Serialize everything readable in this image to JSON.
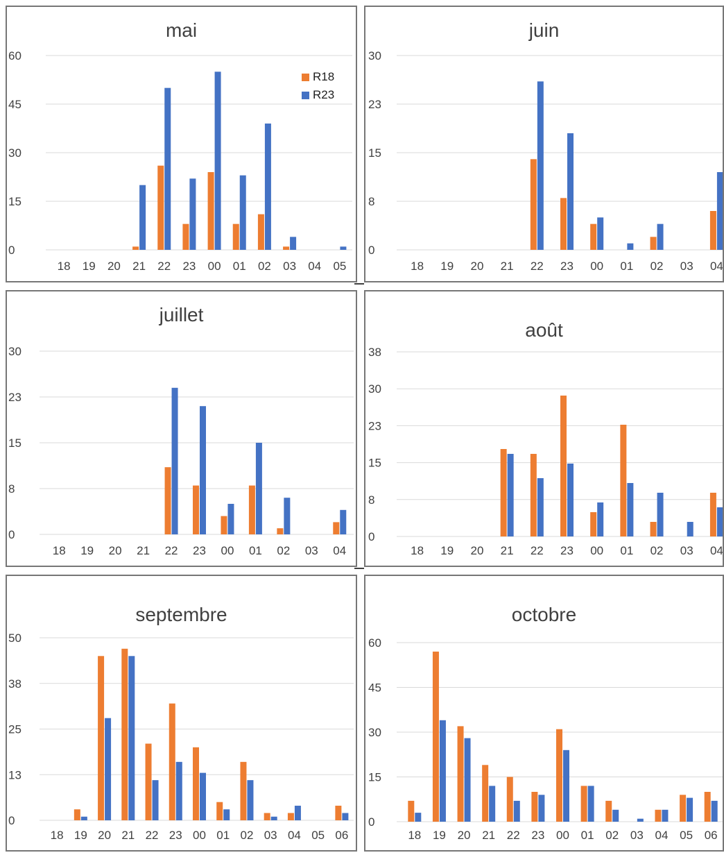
{
  "colors": {
    "R18": "#ED7D31",
    "R23": "#4472C4",
    "grid": "#d9d9d9",
    "text": "#404040"
  },
  "legend": {
    "series": [
      {
        "name": "R18",
        "color": "#ED7D31"
      },
      {
        "name": "R23",
        "color": "#4472C4"
      }
    ]
  },
  "chart_data": [
    {
      "type": "bar",
      "title": "mai",
      "categories": [
        "18",
        "19",
        "20",
        "21",
        "22",
        "23",
        "00",
        "01",
        "02",
        "03",
        "04",
        "05"
      ],
      "yticks": [
        "0",
        "15",
        "30",
        "45",
        "60"
      ],
      "ylim": [
        0,
        60
      ],
      "series": [
        {
          "name": "R18",
          "values": [
            0,
            0,
            0,
            1,
            26,
            8,
            24,
            8,
            11,
            1,
            0,
            0
          ]
        },
        {
          "name": "R23",
          "values": [
            0,
            0,
            0,
            20,
            50,
            22,
            55,
            23,
            39,
            4,
            0,
            1
          ]
        }
      ],
      "legend": "top-right"
    },
    {
      "type": "bar",
      "title": "juin",
      "categories": [
        "18",
        "19",
        "20",
        "21",
        "22",
        "23",
        "00",
        "01",
        "02",
        "03",
        "04"
      ],
      "yticks": [
        "0",
        "8",
        "15",
        "23",
        "30"
      ],
      "ylim": [
        0,
        30
      ],
      "series": [
        {
          "name": "R18",
          "values": [
            0,
            0,
            0,
            0,
            14,
            8,
            4,
            0,
            2,
            0,
            6
          ]
        },
        {
          "name": "R23",
          "values": [
            0,
            0,
            0,
            0,
            26,
            18,
            5,
            1,
            4,
            0,
            12
          ]
        }
      ]
    },
    {
      "type": "bar",
      "title": "juillet",
      "categories": [
        "18",
        "19",
        "20",
        "21",
        "22",
        "23",
        "00",
        "01",
        "02",
        "03",
        "04"
      ],
      "yticks": [
        "0",
        "8",
        "15",
        "23",
        "30"
      ],
      "ylim": [
        0,
        30
      ],
      "series": [
        {
          "name": "R18",
          "values": [
            0,
            0,
            0,
            0,
            11,
            8,
            3,
            8,
            1,
            0,
            2
          ]
        },
        {
          "name": "R23",
          "values": [
            0,
            0,
            0,
            0,
            24,
            21,
            5,
            15,
            6,
            0,
            4
          ]
        }
      ]
    },
    {
      "type": "bar",
      "title": "août",
      "categories": [
        "18",
        "19",
        "20",
        "21",
        "22",
        "23",
        "00",
        "01",
        "02",
        "03",
        "04"
      ],
      "yticks": [
        "0",
        "8",
        "15",
        "23",
        "30",
        "38"
      ],
      "ylim": [
        0,
        38
      ],
      "series": [
        {
          "name": "R18",
          "values": [
            0,
            0,
            0,
            18,
            17,
            29,
            5,
            23,
            3,
            0,
            9
          ]
        },
        {
          "name": "R23",
          "values": [
            0,
            0,
            0,
            17,
            12,
            15,
            7,
            11,
            9,
            3,
            6
          ]
        }
      ]
    },
    {
      "type": "bar",
      "title": "septembre",
      "categories": [
        "18",
        "19",
        "20",
        "21",
        "22",
        "23",
        "00",
        "01",
        "02",
        "03",
        "04",
        "05",
        "06"
      ],
      "yticks": [
        "0",
        "13",
        "25",
        "38",
        "50"
      ],
      "ylim": [
        0,
        50
      ],
      "series": [
        {
          "name": "R18",
          "values": [
            0,
            3,
            45,
            47,
            21,
            32,
            20,
            5,
            16,
            2,
            2,
            0,
            4
          ]
        },
        {
          "name": "R23",
          "values": [
            0,
            1,
            28,
            45,
            11,
            16,
            13,
            3,
            11,
            1,
            4,
            0,
            2
          ]
        }
      ]
    },
    {
      "type": "bar",
      "title": "octobre",
      "categories": [
        "18",
        "19",
        "20",
        "21",
        "22",
        "23",
        "00",
        "01",
        "02",
        "03",
        "04",
        "05",
        "06"
      ],
      "yticks": [
        "0",
        "15",
        "30",
        "45",
        "60"
      ],
      "ylim": [
        0,
        60
      ],
      "series": [
        {
          "name": "R18",
          "values": [
            7,
            57,
            32,
            19,
            15,
            10,
            31,
            12,
            7,
            0,
            4,
            9,
            10
          ]
        },
        {
          "name": "R23",
          "values": [
            3,
            34,
            28,
            12,
            7,
            9,
            24,
            12,
            4,
            1,
            4,
            8,
            7
          ]
        }
      ]
    }
  ]
}
